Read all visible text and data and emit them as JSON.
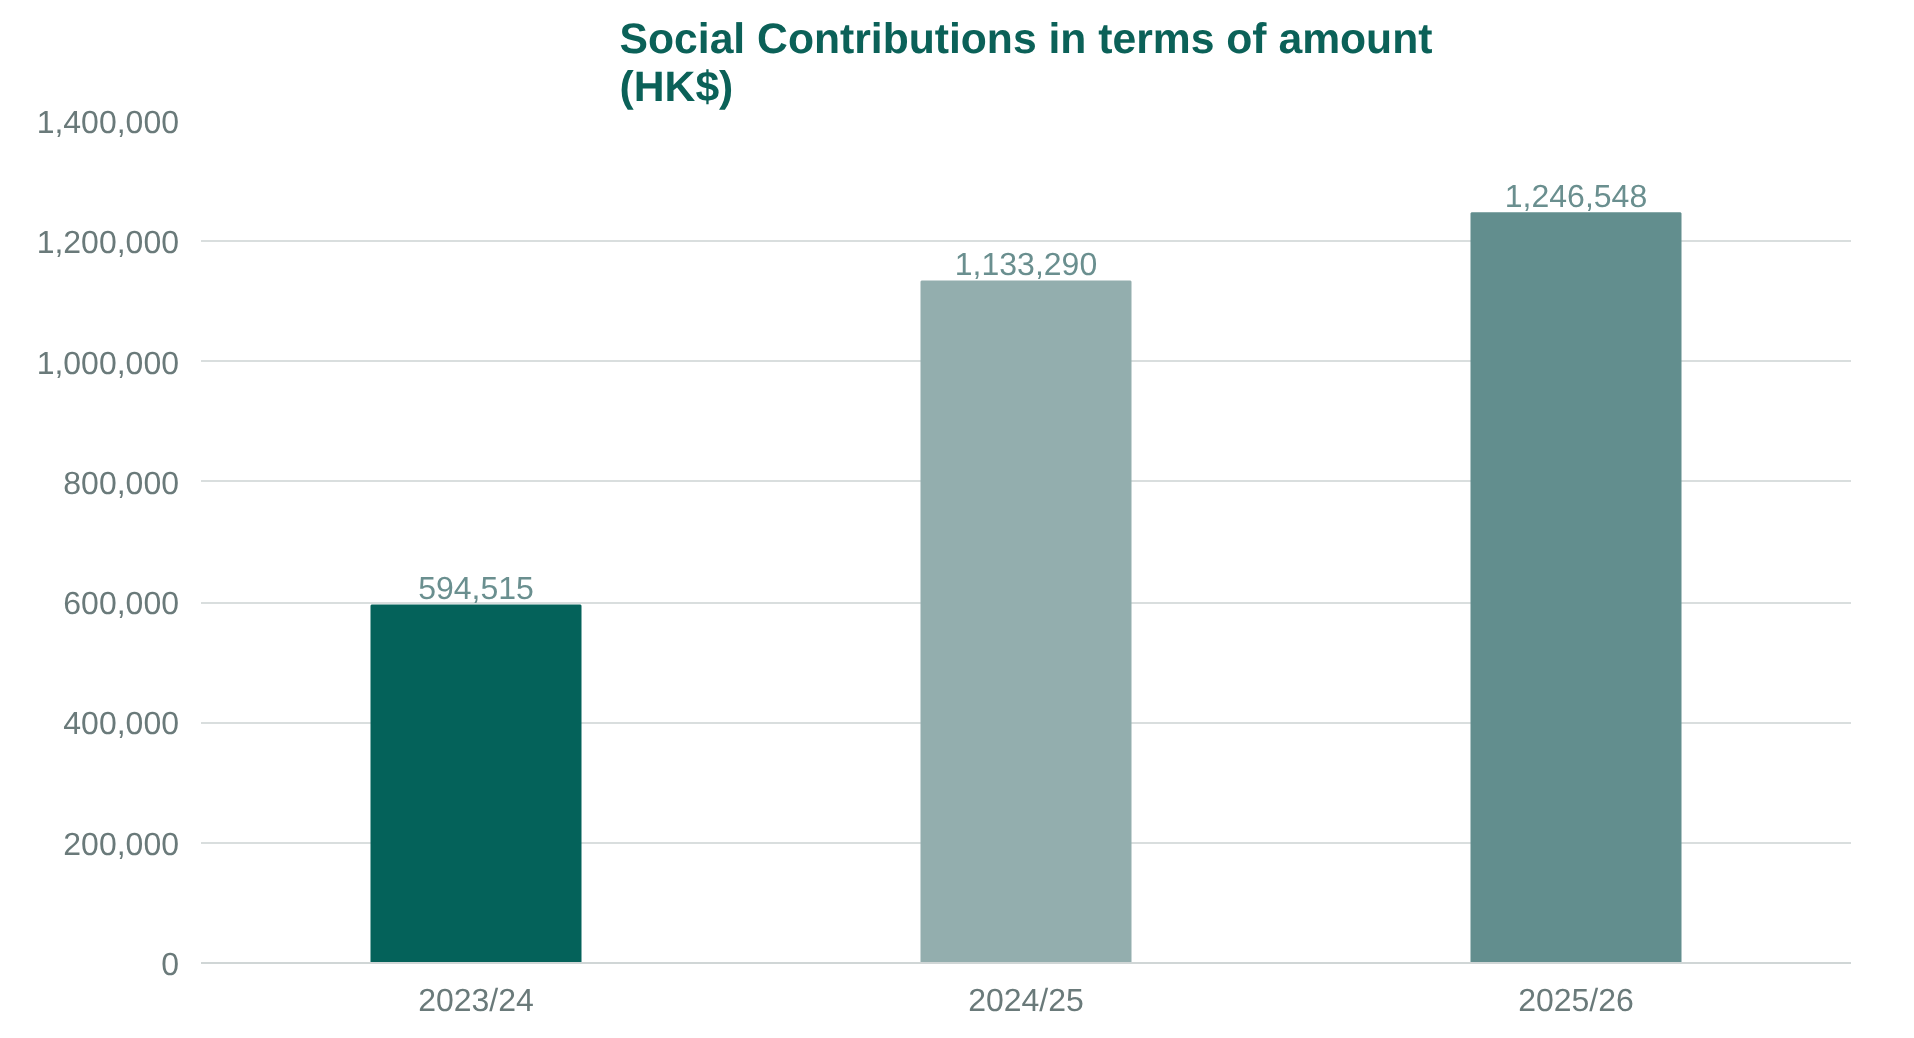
{
  "chart_data": {
    "type": "bar",
    "title": "Social Contributions in terms of amount\n(HK$)",
    "categories": [
      "2023/24",
      "2024/25",
      "2025/26"
    ],
    "values": [
      594515,
      1133290,
      1246548
    ],
    "colors": [
      "#04625a",
      "#93aeae",
      "#628e8e"
    ],
    "ylim": [
      0,
      1400000
    ],
    "yticks": [
      {
        "value": 0,
        "label": "0"
      },
      {
        "value": 200000,
        "label": "200,000"
      },
      {
        "value": 400000,
        "label": "400,000"
      },
      {
        "value": 600000,
        "label": "600,000"
      },
      {
        "value": 800000,
        "label": "800,000"
      },
      {
        "value": 1000000,
        "label": "1,000,000"
      },
      {
        "value": 1200000,
        "label": "1,200,000"
      },
      {
        "value": 1400000,
        "label": "1,400,000"
      }
    ],
    "value_labels": [
      "594,515",
      "1,133,290",
      "1,246,548"
    ],
    "grid": "y"
  }
}
